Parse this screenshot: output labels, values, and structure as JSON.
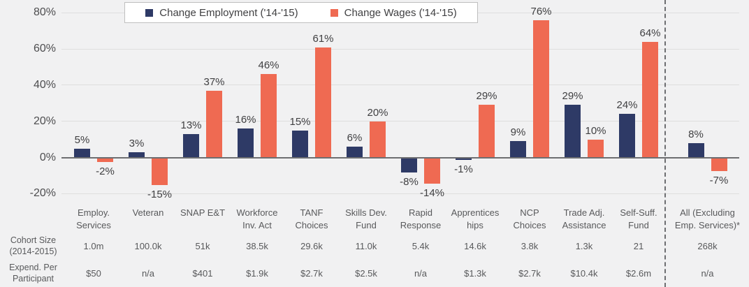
{
  "chart_data": {
    "type": "bar",
    "title": "",
    "categories": [
      "Employ.\nServices",
      "Veteran",
      "SNAP E&T",
      "Workforce\nInv. Act",
      "TANF\nChoices",
      "Skills Dev.\nFund",
      "Rapid\nResponse",
      "Apprentices\nhips",
      "NCP\nChoices",
      "Trade Adj.\nAssistance",
      "Self-Suff.\nFund",
      "All (Excluding\nEmp. Services)*"
    ],
    "series": [
      {
        "name": "Change Employment ('14-'15)",
        "color": "#2e3a66",
        "values": [
          5,
          3,
          13,
          16,
          15,
          6,
          -8,
          -1,
          9,
          29,
          24,
          8
        ]
      },
      {
        "name": "Change Wages ('14-'15)",
        "color": "#ef6a52",
        "values": [
          -2,
          -15,
          37,
          46,
          61,
          20,
          -14,
          29,
          76,
          10,
          64,
          -7
        ]
      }
    ],
    "value_label_format": "percent",
    "yticks": [
      80,
      60,
      40,
      20,
      0,
      -20
    ],
    "ytick_suffix": "%",
    "ylim": [
      -20,
      80
    ],
    "grid": true,
    "legend_position": "top",
    "separator_after_index": 10,
    "table_rows": [
      {
        "label": "Cohort Size\n(2014-2015)",
        "values": [
          "1.0m",
          "100.0k",
          "51k",
          "38.5k",
          "29.6k",
          "11.0k",
          "5.4k",
          "14.6k",
          "3.8k",
          "1.3k",
          "21",
          "268k"
        ]
      },
      {
        "label": "Expend. Per\nParticipant",
        "values": [
          "$50",
          "n/a",
          "$401",
          "$1.9k",
          "$2.7k",
          "$2.5k",
          "n/a",
          "$1.3k",
          "$2.7k",
          "$10.4k",
          "$2.6m",
          "n/a"
        ]
      }
    ],
    "colors": {
      "background": "#f1f1f2",
      "gridline": "#dedede",
      "axis_line": "#6d6e71",
      "separator_line": "#6d6e71",
      "value_text": "#404042",
      "label_text": "#58595b"
    }
  }
}
